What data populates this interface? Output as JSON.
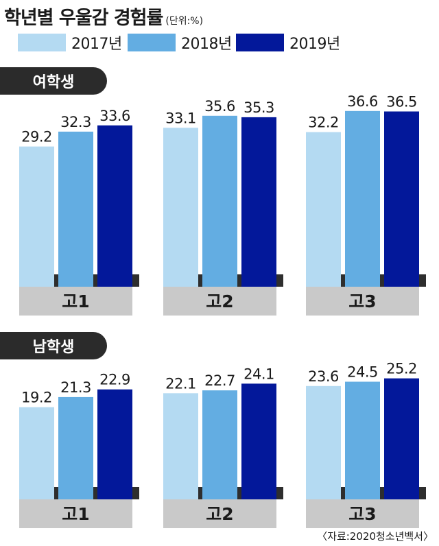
{
  "title": "학년별 우울감 경험률",
  "unit_label": "(단위:%)",
  "legend": [
    {
      "label": "2017년",
      "color": "#b4daf2"
    },
    {
      "label": "2018년",
      "color": "#63ade2"
    },
    {
      "label": "2019년",
      "color": "#03189a"
    }
  ],
  "source": "〈자료:2020청소년백서〉",
  "chart_data": [
    {
      "type": "bar",
      "title": "여학생",
      "categories": [
        "고1",
        "고2",
        "고3"
      ],
      "series": [
        {
          "name": "2017년",
          "values": [
            29.2,
            33.1,
            32.2
          ]
        },
        {
          "name": "2018년",
          "values": [
            32.3,
            35.6,
            36.6
          ]
        },
        {
          "name": "2019년",
          "values": [
            33.6,
            35.3,
            36.5
          ]
        }
      ],
      "colors": [
        "#b4daf2",
        "#63ade2",
        "#03189a"
      ],
      "value_labels": true,
      "grid": false
    },
    {
      "type": "bar",
      "title": "남학생",
      "categories": [
        "고1",
        "고2",
        "고3"
      ],
      "series": [
        {
          "name": "2017년",
          "values": [
            19.2,
            22.1,
            23.6
          ]
        },
        {
          "name": "2018년",
          "values": [
            21.3,
            22.7,
            24.5
          ]
        },
        {
          "name": "2019년",
          "values": [
            22.9,
            24.1,
            25.2
          ]
        }
      ],
      "colors": [
        "#b4daf2",
        "#63ade2",
        "#03189a"
      ],
      "value_labels": true,
      "grid": false
    }
  ]
}
